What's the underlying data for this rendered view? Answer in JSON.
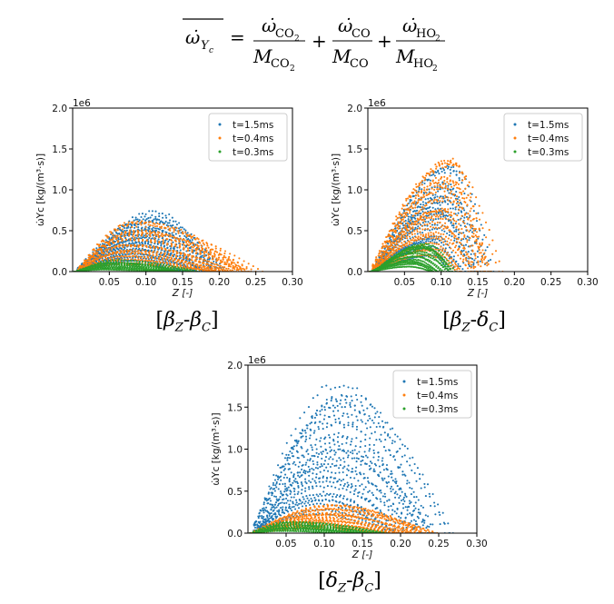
{
  "equation": {
    "lhs_symbol": "ω̇",
    "lhs_sub": "Y",
    "lhs_subsub": "c",
    "terms": [
      {
        "num": "ω̇",
        "num_sub": "CO",
        "num_sub2": "2",
        "den": "M",
        "den_sub": "CO",
        "den_sub2": "2"
      },
      {
        "num": "ω̇",
        "num_sub": "CO",
        "num_sub2": "",
        "den": "M",
        "den_sub": "CO",
        "den_sub2": ""
      },
      {
        "num": "ω̇",
        "num_sub": "HO",
        "num_sub2": "2",
        "den": "M",
        "den_sub": "HO",
        "den_sub2": "2"
      }
    ],
    "equals": "=",
    "plus": "+"
  },
  "colors": {
    "t15": "#1f77b4",
    "t04": "#ff7f0e",
    "t03": "#2ca02c"
  },
  "chart_data": [
    {
      "type": "scatter",
      "caption": "[βZ-βC]",
      "caption_parts": [
        "[",
        "β",
        "Z",
        "-",
        "β",
        "C",
        "]"
      ],
      "xlabel": "Z [-]",
      "ylabel": "ω̇Yc [kg/(m³·s)]",
      "scale_label": "1e6",
      "xlim": [
        0,
        0.3
      ],
      "ylim": [
        0,
        2.0
      ],
      "xticks": [
        "0.05",
        "0.10",
        "0.15",
        "0.20",
        "0.25",
        "0.30"
      ],
      "xtick_values": [
        0.05,
        0.1,
        0.15,
        0.2,
        0.25,
        0.3
      ],
      "yticks": [
        "0.0",
        "0.5",
        "1.0",
        "1.5",
        "2.0"
      ],
      "ytick_values": [
        0.0,
        0.5,
        1.0,
        1.5,
        2.0
      ],
      "legend_position": "top-right",
      "series": [
        {
          "name": "t=1.5ms",
          "peak_x": 0.1,
          "peak_y": 0.72,
          "extent_x": 0.21,
          "curves": 30
        },
        {
          "name": "t=0.4ms",
          "peak_x": 0.08,
          "peak_y": 0.62,
          "extent_x": 0.26,
          "curves": 26
        },
        {
          "name": "t=0.3ms",
          "peak_x": 0.05,
          "peak_y": 0.13,
          "extent_x": 0.17,
          "curves": 12
        }
      ]
    },
    {
      "type": "scatter",
      "caption": "[βZ-δC]",
      "caption_parts": [
        "[",
        "β",
        "Z",
        "-",
        "δ",
        "C",
        "]"
      ],
      "xlabel": "Z [-]",
      "ylabel": "ω̇Yc [kg/(m³·s)]",
      "scale_label": "1e6",
      "xlim": [
        0,
        0.3
      ],
      "ylim": [
        0,
        2.0
      ],
      "xticks": [
        "0.05",
        "0.10",
        "0.15",
        "0.20",
        "0.25",
        "0.30"
      ],
      "xtick_values": [
        0.05,
        0.1,
        0.15,
        0.2,
        0.25,
        0.3
      ],
      "yticks": [
        "0.0",
        "0.5",
        "1.0",
        "1.5",
        "2.0"
      ],
      "ytick_values": [
        0.0,
        0.5,
        1.0,
        1.5,
        2.0
      ],
      "legend_position": "top-right",
      "series": [
        {
          "name": "t=1.5ms",
          "peak_x": 0.105,
          "peak_y": 1.32,
          "extent_x": 0.17,
          "curves": 22
        },
        {
          "name": "t=0.4ms",
          "peak_x": 0.105,
          "peak_y": 1.4,
          "extent_x": 0.18,
          "curves": 26
        },
        {
          "name": "t=0.3ms",
          "peak_x": 0.07,
          "peak_y": 0.36,
          "extent_x": 0.12,
          "curves": 14
        }
      ]
    },
    {
      "type": "scatter",
      "caption": "[δZ-βC]",
      "caption_parts": [
        "[",
        "δ",
        "Z",
        "-",
        "β",
        "C",
        "]"
      ],
      "xlabel": "Z [-]",
      "ylabel": "ω̇Yc [kg/(m³·s)]",
      "scale_label": "1e6",
      "xlim": [
        0,
        0.3
      ],
      "ylim": [
        0,
        2.0
      ],
      "xticks": [
        "0.05",
        "0.10",
        "0.15",
        "0.20",
        "0.25",
        "0.30"
      ],
      "xtick_values": [
        0.05,
        0.1,
        0.15,
        0.2,
        0.25,
        0.3
      ],
      "yticks": [
        "0.0",
        "0.5",
        "1.0",
        "1.5",
        "2.0"
      ],
      "ytick_values": [
        0.0,
        0.5,
        1.0,
        1.5,
        2.0
      ],
      "legend_position": "top-right",
      "series": [
        {
          "name": "t=1.5ms",
          "peak_x": 0.115,
          "peak_y": 1.68,
          "extent_x": 0.26,
          "curves": 32
        },
        {
          "name": "t=0.4ms",
          "peak_x": 0.1,
          "peak_y": 0.35,
          "extent_x": 0.25,
          "curves": 22
        },
        {
          "name": "t=0.3ms",
          "peak_x": 0.05,
          "peak_y": 0.14,
          "extent_x": 0.18,
          "curves": 12
        }
      ]
    }
  ]
}
